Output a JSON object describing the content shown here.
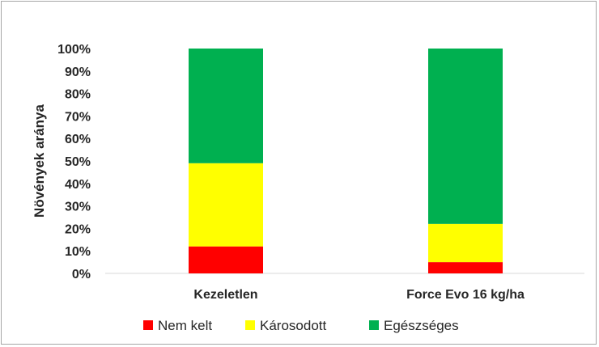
{
  "chart_data": {
    "type": "bar",
    "stacked": true,
    "categories": [
      "Kezeletlen",
      "Force Evo 16 kg/ha"
    ],
    "series": [
      {
        "name": "Nem kelt",
        "values": [
          12,
          5
        ],
        "color": "#ff0000"
      },
      {
        "name": "Károsodott",
        "values": [
          37,
          17
        ],
        "color": "#ffff00"
      },
      {
        "name": "Egészséges",
        "values": [
          51,
          78
        ],
        "color": "#00b050"
      }
    ],
    "ylabel": "Növények aránya",
    "ylim": [
      0,
      100
    ],
    "yticks": [
      "0%",
      "10%",
      "20%",
      "30%",
      "40%",
      "50%",
      "60%",
      "70%",
      "80%",
      "90%",
      "100%"
    ],
    "legend_position": "bottom",
    "grid": false
  }
}
